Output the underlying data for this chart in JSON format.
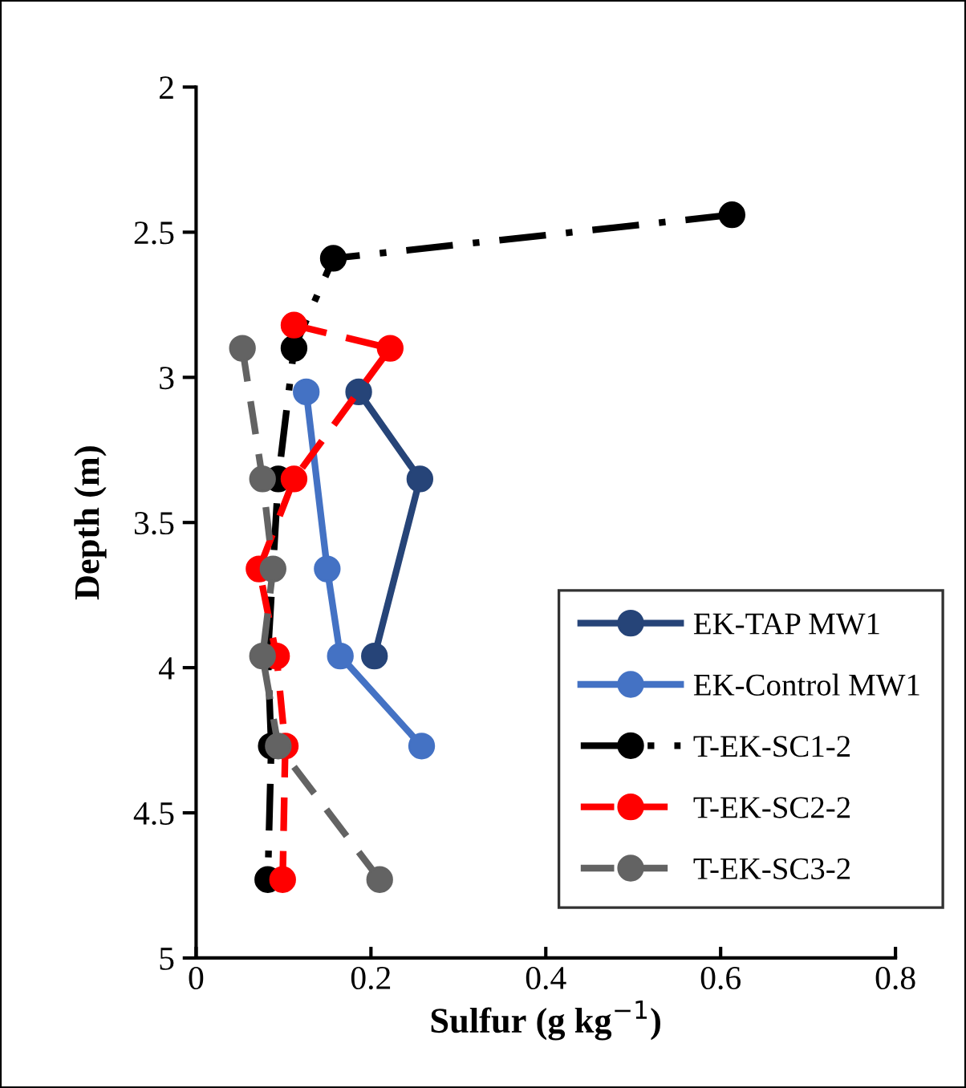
{
  "chart_data": {
    "type": "line",
    "xlabel": "Sulfur (g kg$^{−1}$)",
    "ylabel": "Depth (m)",
    "xlim": [
      0,
      0.8
    ],
    "xticks": [
      0,
      0.2,
      0.4,
      0.6,
      0.8
    ],
    "ylim": [
      5,
      2
    ],
    "yticks": [
      2,
      2.5,
      3,
      3.5,
      4,
      4.5,
      5
    ],
    "grid": false,
    "legend": "bottom right",
    "marker": "circle",
    "series": [
      {
        "name": "EK-TAP MW1",
        "color": "#264478",
        "line_style": "solid",
        "x": [
          0.186,
          0.256,
          0.204
        ],
        "values": [
          3.05,
          3.35,
          3.96
        ]
      },
      {
        "name": "EK-Control MW1",
        "color": "#4472c4",
        "line_style": "solid",
        "x": [
          0.126,
          0.15,
          0.165,
          0.258
        ],
        "values": [
          3.05,
          3.66,
          3.96,
          4.27
        ]
      },
      {
        "name": "T-EK-SC1-2",
        "color": "#000000",
        "line_style": "dashdot",
        "x": [
          0.613,
          0.157,
          0.112,
          0.094,
          0.082,
          0.086,
          0.082
        ],
        "values": [
          2.44,
          2.59,
          2.9,
          3.35,
          3.96,
          4.27,
          4.73
        ]
      },
      {
        "name": "T-EK-SC2-2",
        "color": "#ff0000",
        "line_style": "dashed",
        "x": [
          0.112,
          0.222,
          0.112,
          0.072,
          0.092,
          0.102,
          0.099
        ],
        "values": [
          2.82,
          2.9,
          3.35,
          3.66,
          3.96,
          4.27,
          4.73
        ]
      },
      {
        "name": "T-EK-SC3-2",
        "color": "#636363",
        "line_style": "dashed",
        "x": [
          0.053,
          0.076,
          0.088,
          0.076,
          0.094,
          0.21
        ],
        "values": [
          2.9,
          3.35,
          3.66,
          3.96,
          4.27,
          4.73
        ]
      }
    ]
  }
}
